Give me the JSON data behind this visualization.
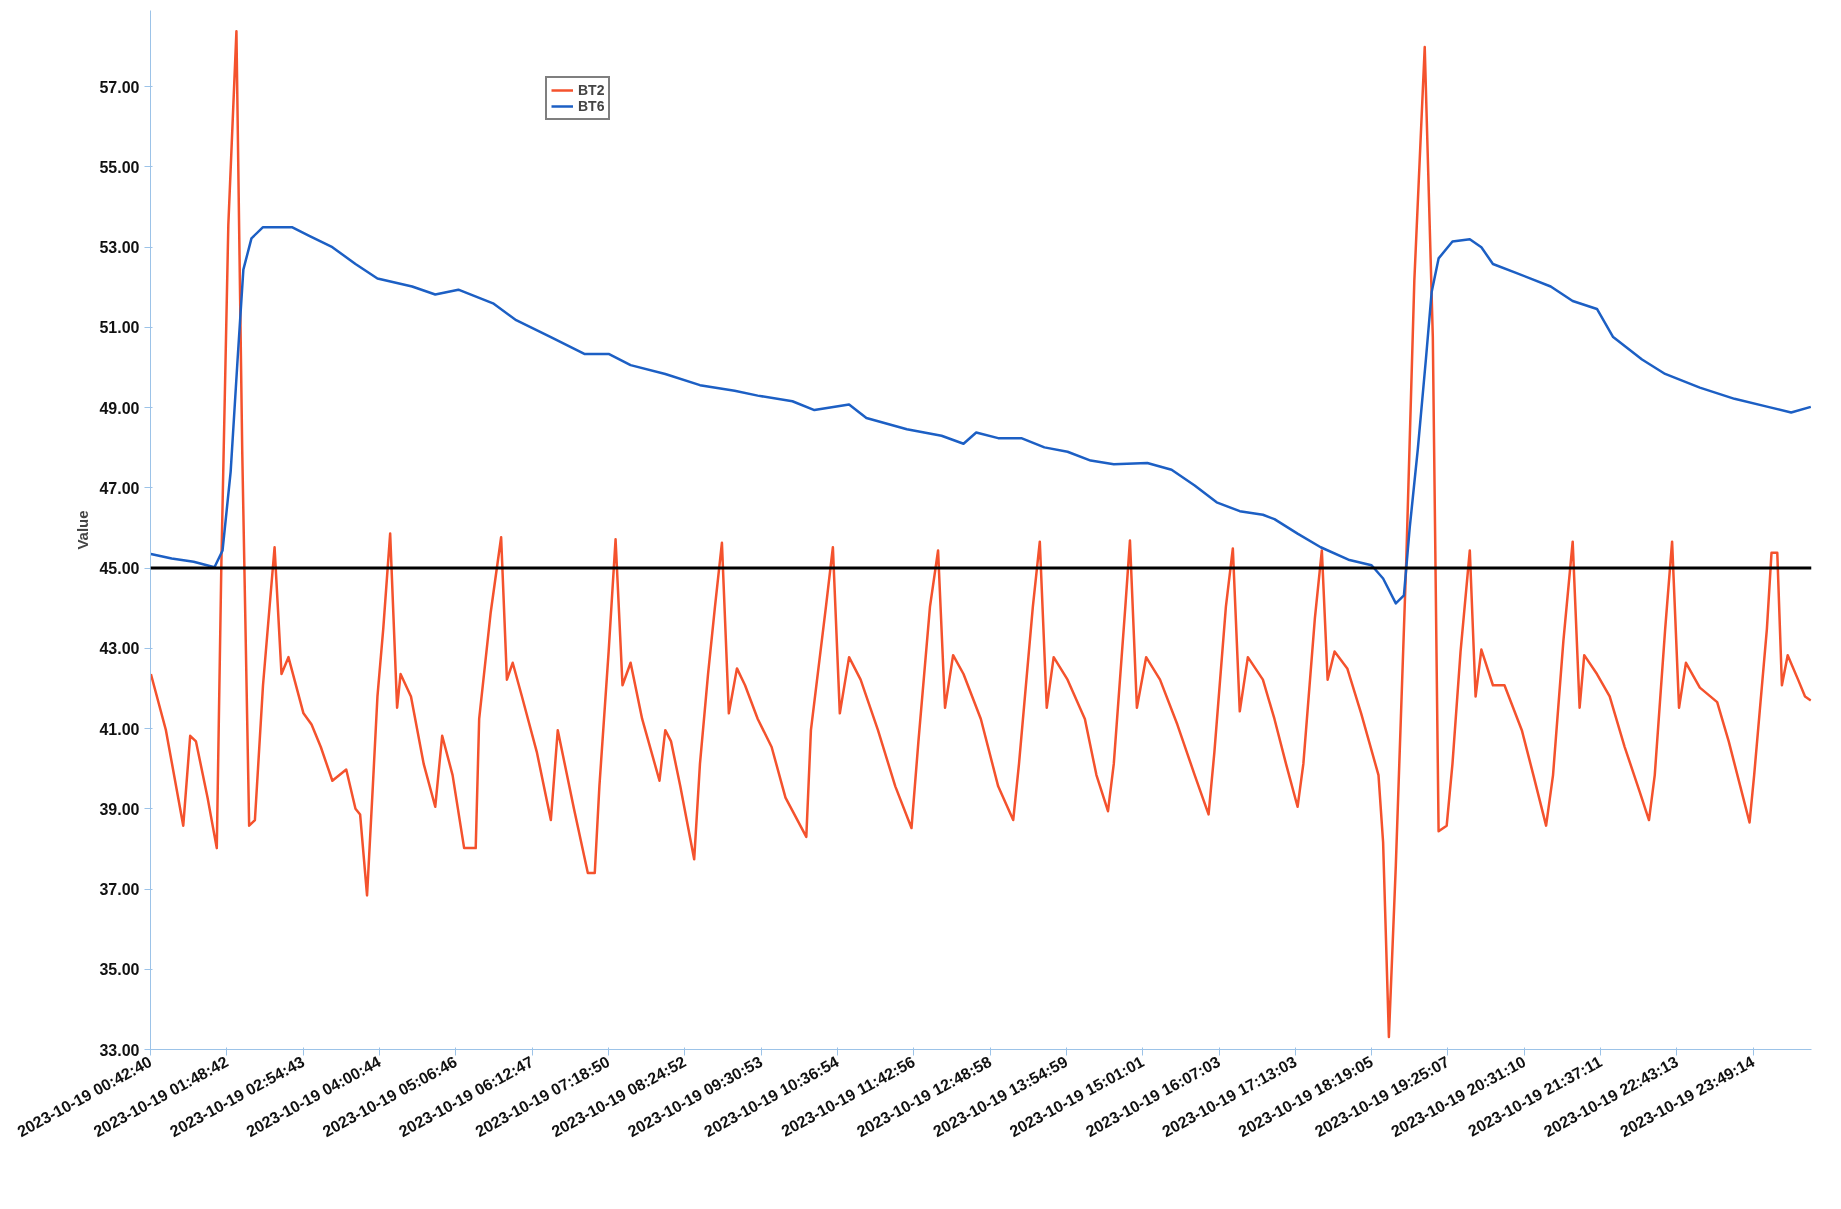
{
  "chart_data": {
    "type": "line",
    "ylabel": "Value",
    "legend": "top left",
    "grid": false,
    "line_style": "solid",
    "xlim": [
      "2023-10-19T00:42:40",
      "2023-10-20T00:39:36"
    ],
    "ylim": [
      33,
      58.9
    ],
    "xticks": [
      {
        "value": "2023-10-19T00:42:40",
        "label": "2023-10-19 00:42:40"
      },
      {
        "value": "2023-10-19T01:48:42",
        "label": "2023-10-19 01:48:42"
      },
      {
        "value": "2023-10-19T02:54:43",
        "label": "2023-10-19 02:54:43"
      },
      {
        "value": "2023-10-19T04:00:44",
        "label": "2023-10-19 04:00:44"
      },
      {
        "value": "2023-10-19T05:06:46",
        "label": "2023-10-19 05:06:46"
      },
      {
        "value": "2023-10-19T06:12:47",
        "label": "2023-10-19 06:12:47"
      },
      {
        "value": "2023-10-19T07:18:50",
        "label": "2023-10-19 07:18:50"
      },
      {
        "value": "2023-10-19T08:24:52",
        "label": "2023-10-19 08:24:52"
      },
      {
        "value": "2023-10-19T09:30:53",
        "label": "2023-10-19 09:30:53"
      },
      {
        "value": "2023-10-19T10:36:54",
        "label": "2023-10-19 10:36:54"
      },
      {
        "value": "2023-10-19T11:42:56",
        "label": "2023-10-19 11:42:56"
      },
      {
        "value": "2023-10-19T12:48:58",
        "label": "2023-10-19 12:48:58"
      },
      {
        "value": "2023-10-19T13:54:59",
        "label": "2023-10-19 13:54:59"
      },
      {
        "value": "2023-10-19T15:01:01",
        "label": "2023-10-19 15:01:01"
      },
      {
        "value": "2023-10-19T16:07:03",
        "label": "2023-10-19 16:07:03"
      },
      {
        "value": "2023-10-19T17:13:03",
        "label": "2023-10-19 17:13:03"
      },
      {
        "value": "2023-10-19T18:19:05",
        "label": "2023-10-19 18:19:05"
      },
      {
        "value": "2023-10-19T19:25:07",
        "label": "2023-10-19 19:25:07"
      },
      {
        "value": "2023-10-19T20:31:10",
        "label": "2023-10-19 20:31:10"
      },
      {
        "value": "2023-10-19T21:37:11",
        "label": "2023-10-19 21:37:11"
      },
      {
        "value": "2023-10-19T22:43:13",
        "label": "2023-10-19 22:43:13"
      },
      {
        "value": "2023-10-19T23:49:14",
        "label": "2023-10-19 23:49:14"
      }
    ],
    "yticks": [
      {
        "value": 33,
        "label": "33.00"
      },
      {
        "value": 35,
        "label": "35.00"
      },
      {
        "value": 37,
        "label": "37.00"
      },
      {
        "value": 39,
        "label": "39.00"
      },
      {
        "value": 41,
        "label": "41.00"
      },
      {
        "value": 43,
        "label": "43.00"
      },
      {
        "value": 45,
        "label": "45.00"
      },
      {
        "value": 47,
        "label": "47.00"
      },
      {
        "value": 49,
        "label": "49.00"
      },
      {
        "value": 51,
        "label": "51.00"
      },
      {
        "value": 53,
        "label": "53.00"
      },
      {
        "value": 55,
        "label": "55.00"
      },
      {
        "value": 57,
        "label": "57.00"
      }
    ],
    "ref_lines": [
      {
        "axis": "y",
        "value": 45,
        "label": null,
        "color": "#000000"
      }
    ],
    "series": [
      {
        "name": "BT2",
        "color": "#f4522d",
        "x": [
          "2023-10-19T00:43",
          "2023-10-19T00:56",
          "2023-10-19T01:11",
          "2023-10-19T01:17",
          "2023-10-19T01:22",
          "2023-10-19T01:32",
          "2023-10-19T01:40",
          "2023-10-19T01:44",
          "2023-10-19T01:50",
          "2023-10-19T01:57",
          "2023-10-19T02:02",
          "2023-10-19T02:08",
          "2023-10-19T02:13",
          "2023-10-19T02:20",
          "2023-10-19T02:30",
          "2023-10-19T02:36",
          "2023-10-19T02:42",
          "2023-10-19T02:55",
          "2023-10-19T03:02",
          "2023-10-19T03:10",
          "2023-10-19T03:20",
          "2023-10-19T03:32",
          "2023-10-19T03:40",
          "2023-10-19T03:44",
          "2023-10-19T03:50",
          "2023-10-19T03:55",
          "2023-10-19T03:59",
          "2023-10-19T04:04",
          "2023-10-19T04:10",
          "2023-10-19T04:16",
          "2023-10-19T04:19",
          "2023-10-19T04:28",
          "2023-10-19T04:39",
          "2023-10-19T04:49",
          "2023-10-19T04:55",
          "2023-10-19T05:04",
          "2023-10-19T05:14",
          "2023-10-19T05:24",
          "2023-10-19T05:27",
          "2023-10-19T05:37",
          "2023-10-19T05:46",
          "2023-10-19T05:51",
          "2023-10-19T05:56",
          "2023-10-19T06:04",
          "2023-10-19T06:17",
          "2023-10-19T06:29",
          "2023-10-19T06:35",
          "2023-10-19T06:49",
          "2023-10-19T07:01",
          "2023-10-19T07:07",
          "2023-10-19T07:11",
          "2023-10-19T07:19",
          "2023-10-19T07:25",
          "2023-10-19T07:31",
          "2023-10-19T07:38",
          "2023-10-19T07:48",
          "2023-10-19T08:03",
          "2023-10-19T08:08",
          "2023-10-19T08:13",
          "2023-10-19T08:21",
          "2023-10-19T08:33",
          "2023-10-19T08:38",
          "2023-10-19T08:45",
          "2023-10-19T08:51",
          "2023-10-19T08:57",
          "2023-10-19T09:03",
          "2023-10-19T09:10",
          "2023-10-19T09:17",
          "2023-10-19T09:28",
          "2023-10-19T09:40",
          "2023-10-19T09:52",
          "2023-10-19T10:10",
          "2023-10-19T10:14",
          "2023-10-19T10:27",
          "2023-10-19T10:33",
          "2023-10-19T10:39",
          "2023-10-19T10:47",
          "2023-10-19T10:57",
          "2023-10-19T11:12",
          "2023-10-19T11:27",
          "2023-10-19T11:41",
          "2023-10-19T11:47",
          "2023-10-19T11:57",
          "2023-10-19T12:04",
          "2023-10-19T12:10",
          "2023-10-19T12:17",
          "2023-10-19T12:26",
          "2023-10-19T12:41",
          "2023-10-19T12:56",
          "2023-10-19T13:09",
          "2023-10-19T13:14",
          "2023-10-19T13:26",
          "2023-10-19T13:32",
          "2023-10-19T13:38",
          "2023-10-19T13:44",
          "2023-10-19T13:56",
          "2023-10-19T14:11",
          "2023-10-19T14:21",
          "2023-10-19T14:31",
          "2023-10-19T14:36",
          "2023-10-19T14:46",
          "2023-10-19T14:50",
          "2023-10-19T14:56",
          "2023-10-19T15:04",
          "2023-10-19T15:16",
          "2023-10-19T15:31",
          "2023-10-19T15:46",
          "2023-10-19T15:58",
          "2023-10-19T16:03",
          "2023-10-19T16:13",
          "2023-10-19T16:19",
          "2023-10-19T16:25",
          "2023-10-19T16:32",
          "2023-10-19T16:45",
          "2023-10-19T16:55",
          "2023-10-19T17:05",
          "2023-10-19T17:15",
          "2023-10-19T17:20",
          "2023-10-19T17:30",
          "2023-10-19T17:36",
          "2023-10-19T17:41",
          "2023-10-19T17:47",
          "2023-10-19T17:58",
          "2023-10-19T18:10",
          "2023-10-19T18:25",
          "2023-10-19T18:29",
          "2023-10-19T18:34",
          "2023-10-19T18:40",
          "2023-10-19T18:44",
          "2023-10-19T18:49",
          "2023-10-19T18:56",
          "2023-10-19T19:05",
          "2023-10-19T19:12",
          "2023-10-19T19:17",
          "2023-10-19T19:24",
          "2023-10-19T19:29",
          "2023-10-19T19:36",
          "2023-10-19T19:44",
          "2023-10-19T19:49",
          "2023-10-19T19:54",
          "2023-10-19T20:04",
          "2023-10-19T20:14",
          "2023-10-19T20:29",
          "2023-10-19T20:39",
          "2023-10-19T20:50",
          "2023-10-19T20:56",
          "2023-10-19T21:05",
          "2023-10-19T21:13",
          "2023-10-19T21:19",
          "2023-10-19T21:23",
          "2023-10-19T21:34",
          "2023-10-19T21:45",
          "2023-10-19T21:58",
          "2023-10-19T22:11",
          "2023-10-19T22:19",
          "2023-10-19T22:24",
          "2023-10-19T22:33",
          "2023-10-19T22:39",
          "2023-10-19T22:45",
          "2023-10-19T22:51",
          "2023-10-19T23:03",
          "2023-10-19T23:18",
          "2023-10-19T23:28",
          "2023-10-19T23:38",
          "2023-10-19T23:46",
          "2023-10-19T23:50",
          "2023-10-20T00:01",
          "2023-10-20T00:05",
          "2023-10-20T00:10",
          "2023-10-20T00:14",
          "2023-10-20T00:19",
          "2023-10-20T00:28",
          "2023-10-20T00:34",
          "2023-10-20T00:39"
        ],
        "values": [
          42.36,
          40.96,
          38.58,
          40.82,
          40.68,
          39.28,
          38.02,
          45.16,
          53.56,
          58.38,
          47.96,
          38.58,
          38.72,
          42.08,
          45.52,
          42.36,
          42.78,
          41.38,
          41.1,
          40.54,
          39.7,
          39.98,
          39.0,
          38.86,
          36.84,
          39.56,
          41.8,
          43.48,
          45.86,
          41.52,
          42.36,
          41.8,
          40.12,
          39.05,
          40.82,
          39.84,
          38.02,
          38.02,
          41.24,
          43.9,
          45.77,
          42.22,
          42.64,
          41.8,
          40.4,
          38.72,
          40.96,
          39.0,
          37.4,
          37.4,
          39.56,
          42.92,
          45.72,
          42.08,
          42.64,
          41.24,
          39.7,
          40.96,
          40.68,
          39.56,
          37.74,
          40.12,
          42.36,
          44.04,
          45.63,
          41.38,
          42.5,
          42.08,
          41.24,
          40.54,
          39.28,
          38.3,
          40.96,
          44.04,
          45.52,
          41.38,
          42.78,
          42.22,
          40.96,
          39.56,
          38.52,
          40.68,
          44.04,
          45.44,
          41.52,
          42.83,
          42.36,
          41.24,
          39.56,
          38.72,
          40.12,
          44.04,
          45.66,
          41.52,
          42.78,
          42.22,
          41.24,
          39.84,
          38.94,
          40.12,
          44.04,
          45.69,
          41.52,
          42.78,
          42.22,
          41.1,
          39.84,
          38.86,
          40.4,
          44.04,
          45.49,
          41.43,
          42.78,
          42.22,
          41.24,
          40.12,
          39.05,
          40.12,
          43.76,
          45.44,
          42.22,
          42.92,
          42.5,
          41.38,
          39.84,
          38.16,
          33.31,
          37.59,
          40.96,
          45.16,
          52.16,
          57.99,
          50.76,
          38.44,
          38.58,
          40.12,
          42.92,
          45.44,
          41.8,
          42.97,
          42.08,
          42.08,
          40.96,
          39.84,
          38.58,
          39.84,
          43.2,
          45.66,
          41.52,
          42.83,
          42.36,
          41.8,
          40.54,
          39.42,
          38.72,
          39.84,
          43.48,
          45.66,
          41.52,
          42.64,
          42.02,
          41.66,
          40.68,
          39.56,
          38.66,
          39.84,
          43.48,
          45.38,
          45.38,
          42.08,
          42.83,
          42.22,
          41.8,
          41.7
        ]
      },
      {
        "name": "BT6",
        "color": "#1c5fc4",
        "x": [
          "2023-10-19T00:43",
          "2023-10-19T01:01",
          "2023-10-19T01:20",
          "2023-10-19T01:38",
          "2023-10-19T01:45",
          "2023-10-19T01:52",
          "2023-10-19T01:58",
          "2023-10-19T02:03",
          "2023-10-19T02:10",
          "2023-10-19T02:20",
          "2023-10-19T02:45",
          "2023-10-19T03:00",
          "2023-10-19T03:20",
          "2023-10-19T03:40",
          "2023-10-19T03:59",
          "2023-10-19T04:29",
          "2023-10-19T04:49",
          "2023-10-19T05:09",
          "2023-10-19T05:39",
          "2023-10-19T05:59",
          "2023-10-19T06:29",
          "2023-10-19T06:58",
          "2023-10-19T07:19",
          "2023-10-19T07:38",
          "2023-10-19T08:08",
          "2023-10-19T08:38",
          "2023-10-19T09:08",
          "2023-10-19T09:28",
          "2023-10-19T09:58",
          "2023-10-19T10:17",
          "2023-10-19T10:47",
          "2023-10-19T11:02",
          "2023-10-19T11:37",
          "2023-10-19T12:07",
          "2023-10-19T12:26",
          "2023-10-19T12:37",
          "2023-10-19T12:56",
          "2023-10-19T13:16",
          "2023-10-19T13:36",
          "2023-10-19T13:56",
          "2023-10-19T14:16",
          "2023-10-19T14:36",
          "2023-10-19T15:05",
          "2023-10-19T15:26",
          "2023-10-19T15:46",
          "2023-10-19T16:05",
          "2023-10-19T16:25",
          "2023-10-19T16:45",
          "2023-10-19T16:55",
          "2023-10-19T17:15",
          "2023-10-19T17:35",
          "2023-10-19T17:59",
          "2023-10-19T18:19",
          "2023-10-19T18:29",
          "2023-10-19T18:40",
          "2023-10-19T18:47",
          "2023-10-19T18:52",
          "2023-10-19T18:59",
          "2023-10-19T19:06",
          "2023-10-19T19:11",
          "2023-10-19T19:17",
          "2023-10-19T19:29",
          "2023-10-19T19:44",
          "2023-10-19T19:54",
          "2023-10-19T20:04",
          "2023-10-19T20:24",
          "2023-10-19T20:54",
          "2023-10-19T21:13",
          "2023-10-19T21:34",
          "2023-10-19T21:48",
          "2023-10-19T22:13",
          "2023-10-19T22:33",
          "2023-10-19T23:03",
          "2023-10-19T23:33",
          "2023-10-20T00:02",
          "2023-10-20T00:22",
          "2023-10-20T00:39"
        ],
        "values": [
          45.35,
          45.24,
          45.16,
          45.02,
          45.44,
          47.4,
          50.2,
          52.44,
          53.22,
          53.5,
          53.5,
          53.28,
          53.0,
          52.58,
          52.22,
          52.02,
          51.82,
          51.94,
          51.6,
          51.18,
          50.76,
          50.34,
          50.34,
          50.06,
          49.84,
          49.56,
          49.42,
          49.3,
          49.16,
          48.94,
          49.08,
          48.74,
          48.46,
          48.3,
          48.1,
          48.38,
          48.24,
          48.24,
          48.01,
          47.9,
          47.68,
          47.59,
          47.62,
          47.45,
          47.06,
          46.64,
          46.42,
          46.33,
          46.22,
          45.86,
          45.52,
          45.21,
          45.07,
          44.74,
          44.12,
          44.32,
          46.0,
          47.96,
          50.2,
          51.88,
          52.72,
          53.14,
          53.2,
          53.0,
          52.58,
          52.36,
          52.02,
          51.66,
          51.46,
          50.76,
          50.2,
          49.84,
          49.5,
          49.22,
          49.02,
          48.88,
          49.02
        ]
      }
    ]
  }
}
